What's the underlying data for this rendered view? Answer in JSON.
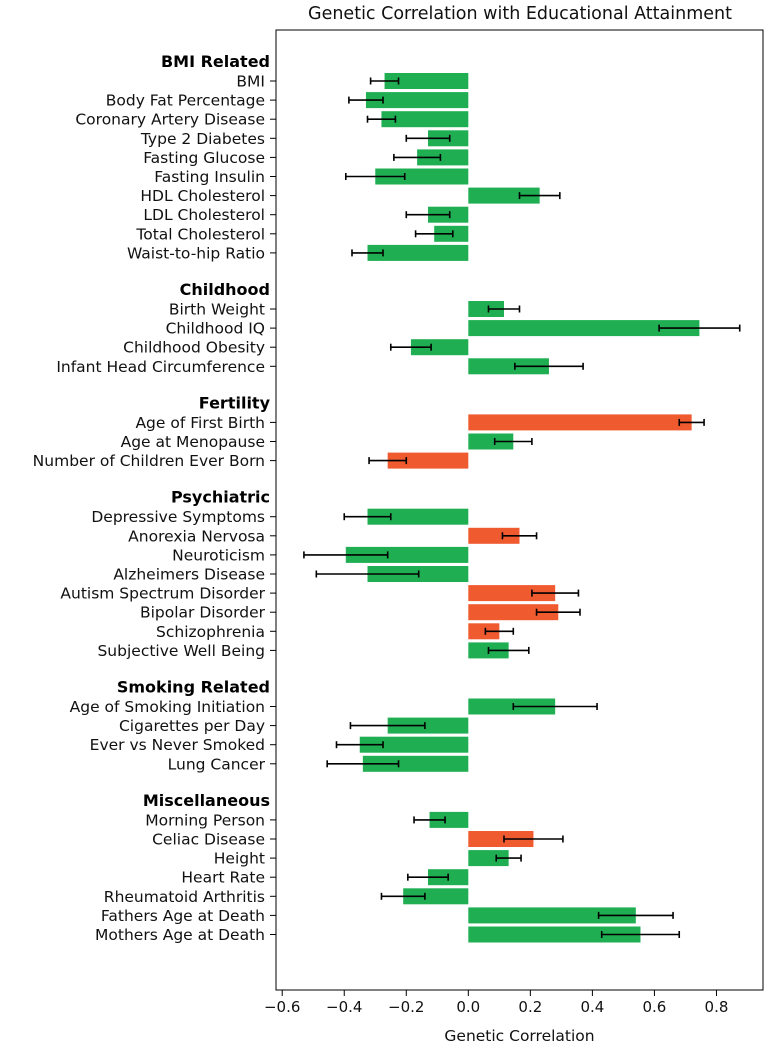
{
  "chart_data": {
    "type": "bar",
    "orientation": "horizontal",
    "title": "Genetic Correlation with Educational Attainment",
    "xlabel": "Genetic Correlation",
    "ylabel": "",
    "xlim": [
      -0.62,
      0.95
    ],
    "xticks": [
      -0.6,
      -0.4,
      -0.2,
      0.0,
      0.2,
      0.4,
      0.6,
      0.8
    ],
    "xtick_labels": [
      "−0.6",
      "−0.4",
      "−0.2",
      "0.0",
      "0.2",
      "0.4",
      "0.6",
      "0.8"
    ],
    "grid": false,
    "colors": {
      "green": "#1faf52",
      "orange": "#f05a2f"
    },
    "groups": [
      {
        "name": "BMI Related",
        "items": [
          {
            "label": "BMI",
            "value": -0.27,
            "err": 0.045,
            "color": "green"
          },
          {
            "label": "Body Fat Percentage",
            "value": -0.33,
            "err": 0.055,
            "color": "green"
          },
          {
            "label": "Coronary Artery Disease",
            "value": -0.28,
            "err": 0.045,
            "color": "green"
          },
          {
            "label": "Type 2 Diabetes",
            "value": -0.13,
            "err": 0.07,
            "color": "green"
          },
          {
            "label": "Fasting Glucose",
            "value": -0.165,
            "err": 0.075,
            "color": "green"
          },
          {
            "label": "Fasting Insulin",
            "value": -0.3,
            "err": 0.095,
            "color": "green"
          },
          {
            "label": "HDL Cholesterol",
            "value": 0.23,
            "err": 0.065,
            "color": "green"
          },
          {
            "label": "LDL Cholesterol",
            "value": -0.13,
            "err": 0.07,
            "color": "green"
          },
          {
            "label": "Total Cholesterol",
            "value": -0.11,
            "err": 0.06,
            "color": "green"
          },
          {
            "label": "Waist-to-hip Ratio",
            "value": -0.325,
            "err": 0.05,
            "color": "green"
          }
        ]
      },
      {
        "name": "Childhood",
        "items": [
          {
            "label": "Birth Weight",
            "value": 0.115,
            "err": 0.05,
            "color": "green"
          },
          {
            "label": "Childhood IQ",
            "value": 0.745,
            "err": 0.13,
            "color": "green"
          },
          {
            "label": "Childhood Obesity",
            "value": -0.185,
            "err": 0.065,
            "color": "green"
          },
          {
            "label": "Infant Head Circumference",
            "value": 0.26,
            "err": 0.11,
            "color": "green"
          }
        ]
      },
      {
        "name": "Fertility",
        "items": [
          {
            "label": "Age of First Birth",
            "value": 0.72,
            "err": 0.04,
            "color": "orange"
          },
          {
            "label": "Age at Menopause",
            "value": 0.145,
            "err": 0.06,
            "color": "green"
          },
          {
            "label": "Number of Children Ever Born",
            "value": -0.26,
            "err": 0.06,
            "color": "orange"
          }
        ]
      },
      {
        "name": "Psychiatric",
        "items": [
          {
            "label": "Depressive Symptoms",
            "value": -0.325,
            "err": 0.075,
            "color": "green"
          },
          {
            "label": "Anorexia Nervosa",
            "value": 0.165,
            "err": 0.055,
            "color": "orange"
          },
          {
            "label": "Neuroticism",
            "value": -0.395,
            "err": 0.135,
            "color": "green"
          },
          {
            "label": "Alzheimers Disease",
            "value": -0.325,
            "err": 0.165,
            "color": "green"
          },
          {
            "label": "Autism Spectrum Disorder",
            "value": 0.28,
            "err": 0.075,
            "color": "orange"
          },
          {
            "label": "Bipolar Disorder",
            "value": 0.29,
            "err": 0.07,
            "color": "orange"
          },
          {
            "label": "Schizophrenia",
            "value": 0.1,
            "err": 0.045,
            "color": "orange"
          },
          {
            "label": "Subjective Well Being",
            "value": 0.13,
            "err": 0.065,
            "color": "green"
          }
        ]
      },
      {
        "name": "Smoking Related",
        "items": [
          {
            "label": "Age of Smoking Initiation",
            "value": 0.28,
            "err": 0.135,
            "color": "green"
          },
          {
            "label": "Cigarettes per Day",
            "value": -0.26,
            "err": 0.12,
            "color": "green"
          },
          {
            "label": "Ever vs Never Smoked",
            "value": -0.35,
            "err": 0.075,
            "color": "green"
          },
          {
            "label": "Lung Cancer ",
            "value": -0.34,
            "err": 0.115,
            "color": "green"
          }
        ]
      },
      {
        "name": "Miscellaneous",
        "items": [
          {
            "label": "Morning Person",
            "value": -0.125,
            "err": 0.05,
            "color": "green"
          },
          {
            "label": "Celiac Disease",
            "value": 0.21,
            "err": 0.095,
            "color": "orange"
          },
          {
            "label": "Height",
            "value": 0.13,
            "err": 0.04,
            "color": "green"
          },
          {
            "label": "Heart Rate",
            "value": -0.13,
            "err": 0.065,
            "color": "green"
          },
          {
            "label": "Rheumatoid Arthritis",
            "value": -0.21,
            "err": 0.07,
            "color": "green"
          },
          {
            "label": "Fathers Age at Death",
            "value": 0.54,
            "err": 0.12,
            "color": "green"
          },
          {
            "label": "Mothers Age at Death",
            "value": 0.555,
            "err": 0.125,
            "color": "green"
          }
        ]
      }
    ]
  }
}
